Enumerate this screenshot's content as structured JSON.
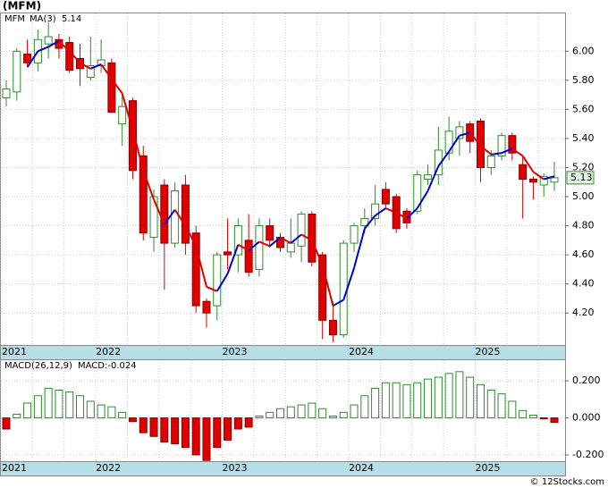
{
  "title": "(MFM)",
  "footer": "© 12Stocks.com",
  "chart_data": [
    {
      "type": "candlestick",
      "legend": {
        "symbol": "MFM",
        "ma_name": "MA(3)",
        "ma_value": "5.14"
      },
      "price_label": "5.13",
      "categories": [
        "2021",
        null,
        null,
        null,
        null,
        null,
        null,
        null,
        null,
        "2022",
        null,
        null,
        null,
        null,
        null,
        null,
        null,
        null,
        null,
        null,
        null,
        "2023",
        null,
        null,
        null,
        null,
        null,
        null,
        null,
        null,
        null,
        null,
        null,
        "2024",
        null,
        null,
        null,
        null,
        null,
        null,
        null,
        null,
        null,
        null,
        null,
        "2025",
        null,
        null,
        null,
        null,
        null,
        null,
        null
      ],
      "open": [
        5.68,
        5.72,
        5.98,
        5.92,
        6.05,
        6.08,
        6.06,
        5.95,
        5.82,
        5.9,
        5.92,
        5.5,
        5.66,
        5.28,
        4.72,
        5.08,
        4.68,
        5.08,
        4.75,
        4.28,
        4.25,
        4.62,
        4.6,
        4.7,
        4.5,
        4.8,
        4.72,
        4.62,
        4.66,
        4.88,
        4.6,
        4.15,
        4.05,
        4.68,
        4.8,
        4.85,
        5.05,
        5.0,
        4.9,
        4.9,
        5.12,
        5.15,
        5.3,
        5.4,
        5.5,
        5.52,
        5.2,
        5.28,
        5.42,
        5.22,
        5.12,
        5.08,
        5.1
      ],
      "high": [
        5.8,
        6.02,
        6.08,
        6.15,
        6.2,
        6.12,
        6.1,
        6.05,
        6.1,
        6.08,
        5.95,
        5.7,
        5.68,
        5.35,
        5.05,
        5.12,
        5.1,
        5.15,
        4.8,
        4.3,
        4.62,
        4.85,
        4.85,
        4.88,
        4.85,
        4.85,
        4.75,
        4.85,
        4.9,
        4.9,
        4.62,
        4.28,
        4.7,
        4.82,
        4.92,
        5.08,
        5.1,
        5.02,
        4.92,
        5.18,
        5.22,
        5.48,
        5.55,
        5.52,
        5.52,
        5.54,
        5.32,
        5.44,
        5.44,
        5.28,
        5.14,
        5.16,
        5.24
      ],
      "low": [
        5.62,
        5.66,
        5.9,
        5.86,
        5.95,
        5.95,
        5.85,
        5.76,
        5.8,
        5.85,
        5.58,
        5.35,
        5.12,
        4.7,
        4.62,
        4.36,
        4.65,
        4.6,
        4.2,
        4.1,
        4.15,
        4.5,
        4.48,
        4.45,
        4.45,
        4.65,
        4.62,
        4.58,
        4.55,
        4.52,
        4.02,
        4.0,
        4.03,
        4.62,
        4.75,
        4.8,
        4.92,
        4.75,
        4.78,
        4.88,
        5.08,
        5.08,
        5.25,
        5.28,
        5.3,
        5.1,
        5.15,
        5.25,
        5.25,
        4.85,
        4.98,
        5.0,
        5.04
      ],
      "close": [
        5.74,
        6.0,
        5.92,
        6.08,
        6.1,
        6.02,
        5.87,
        5.88,
        5.9,
        5.94,
        5.58,
        5.62,
        5.18,
        4.75,
        5.0,
        4.68,
        5.04,
        4.68,
        4.25,
        4.2,
        4.6,
        4.6,
        4.8,
        4.48,
        4.8,
        4.7,
        4.65,
        4.68,
        4.88,
        4.55,
        4.15,
        4.05,
        4.68,
        4.8,
        4.85,
        4.95,
        4.95,
        4.78,
        4.82,
        5.15,
        5.15,
        5.32,
        5.45,
        5.48,
        5.38,
        5.2,
        5.28,
        5.42,
        5.3,
        5.12,
        5.1,
        5.14,
        5.13
      ],
      "ma": [
        null,
        null,
        5.89,
        6.0,
        6.03,
        6.07,
        6.0,
        5.92,
        5.88,
        5.91,
        5.81,
        5.71,
        5.46,
        5.18,
        4.98,
        4.81,
        4.91,
        4.8,
        4.66,
        4.38,
        4.35,
        4.47,
        4.67,
        4.63,
        4.69,
        4.66,
        4.72,
        4.68,
        4.74,
        4.7,
        4.53,
        4.25,
        4.29,
        4.51,
        4.78,
        4.87,
        4.92,
        4.89,
        4.85,
        4.92,
        5.04,
        5.21,
        5.31,
        5.42,
        5.44,
        5.35,
        5.29,
        5.3,
        5.33,
        5.28,
        5.17,
        5.12,
        5.14
      ],
      "up_color": "#2e8b2e",
      "down_color": "#e00000",
      "ma_up_color": "#0000cc",
      "ma_down_color": "#e00000",
      "ylim": [
        3.98,
        6.26
      ],
      "yticks": [
        {
          "value": 4.2,
          "label": "4.20"
        },
        {
          "value": 4.4,
          "label": "4.40"
        },
        {
          "value": 4.6,
          "label": "4.60"
        },
        {
          "value": 4.8,
          "label": "4.80"
        },
        {
          "value": 5.0,
          "label": "5.00"
        },
        {
          "value": 5.2,
          "label": "5.20"
        },
        {
          "value": 5.4,
          "label": "5.40"
        },
        {
          "value": 5.6,
          "label": "5.60"
        },
        {
          "value": 5.8,
          "label": "5.80"
        },
        {
          "value": 6.0,
          "label": "6.00"
        }
      ],
      "grid": true
    },
    {
      "type": "bar",
      "legend": {
        "name": "MACD(26,12,9)",
        "value": "MACD:-0.024"
      },
      "values": [
        -0.06,
        0.02,
        0.08,
        0.12,
        0.16,
        0.15,
        0.14,
        0.12,
        0.09,
        0.07,
        0.06,
        0.03,
        -0.02,
        -0.08,
        -0.1,
        -0.13,
        -0.14,
        -0.16,
        -0.2,
        -0.23,
        -0.16,
        -0.12,
        -0.06,
        -0.05,
        0.01,
        0.03,
        0.05,
        0.06,
        0.07,
        0.08,
        0.05,
        0.01,
        0.03,
        0.07,
        0.12,
        0.16,
        0.19,
        0.19,
        0.18,
        0.19,
        0.21,
        0.22,
        0.24,
        0.25,
        0.22,
        0.18,
        0.15,
        0.13,
        0.09,
        0.04,
        0.015,
        -0.005,
        -0.024
      ],
      "up_color": "#2e8b2e",
      "down_color": "#e00000",
      "ylim": [
        -0.234,
        0.312
      ],
      "yticks": [
        {
          "value": -0.2,
          "label": "-0.200"
        },
        {
          "value": 0,
          "label": "0.000"
        },
        {
          "value": 0.2,
          "label": "0.200"
        }
      ],
      "grid": true
    }
  ]
}
